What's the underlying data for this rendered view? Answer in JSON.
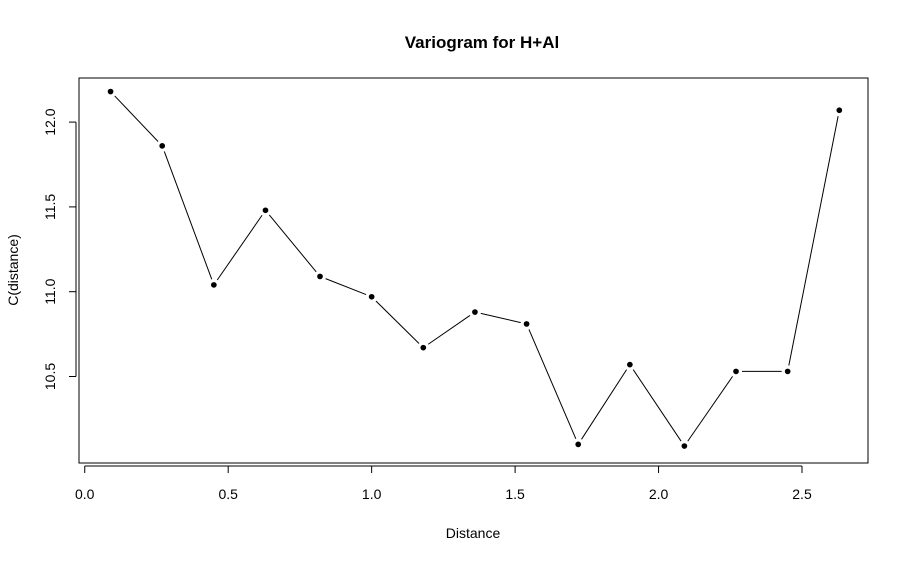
{
  "chart_data": {
    "type": "line",
    "title": "Variogram for H+Al",
    "xlabel": "Distance",
    "ylabel": "C(distance)",
    "xlim": [
      -0.02,
      2.73
    ],
    "ylim": [
      9.99,
      12.26
    ],
    "xticks": [
      0.0,
      0.5,
      1.0,
      1.5,
      2.0,
      2.5
    ],
    "xtick_labels": [
      "0.0",
      "0.5",
      "1.0",
      "1.5",
      "2.0",
      "2.5"
    ],
    "yticks": [
      10.5,
      11.0,
      11.5,
      12.0
    ],
    "ytick_labels": [
      "10.5",
      "11.0",
      "11.5",
      "12.0"
    ],
    "grid": false,
    "legend": "none",
    "style": "points connected by line segments (type b)",
    "series": [
      {
        "x": [
          0.09,
          0.27,
          0.45,
          0.63,
          0.82,
          1.0,
          1.18,
          1.36,
          1.54,
          1.72,
          1.9,
          2.09,
          2.27,
          2.45,
          2.63
        ],
        "y": [
          12.18,
          11.86,
          11.04,
          11.48,
          11.09,
          10.97,
          10.67,
          10.88,
          10.81,
          10.1,
          10.57,
          10.09,
          10.53,
          10.53,
          12.07
        ]
      }
    ]
  }
}
